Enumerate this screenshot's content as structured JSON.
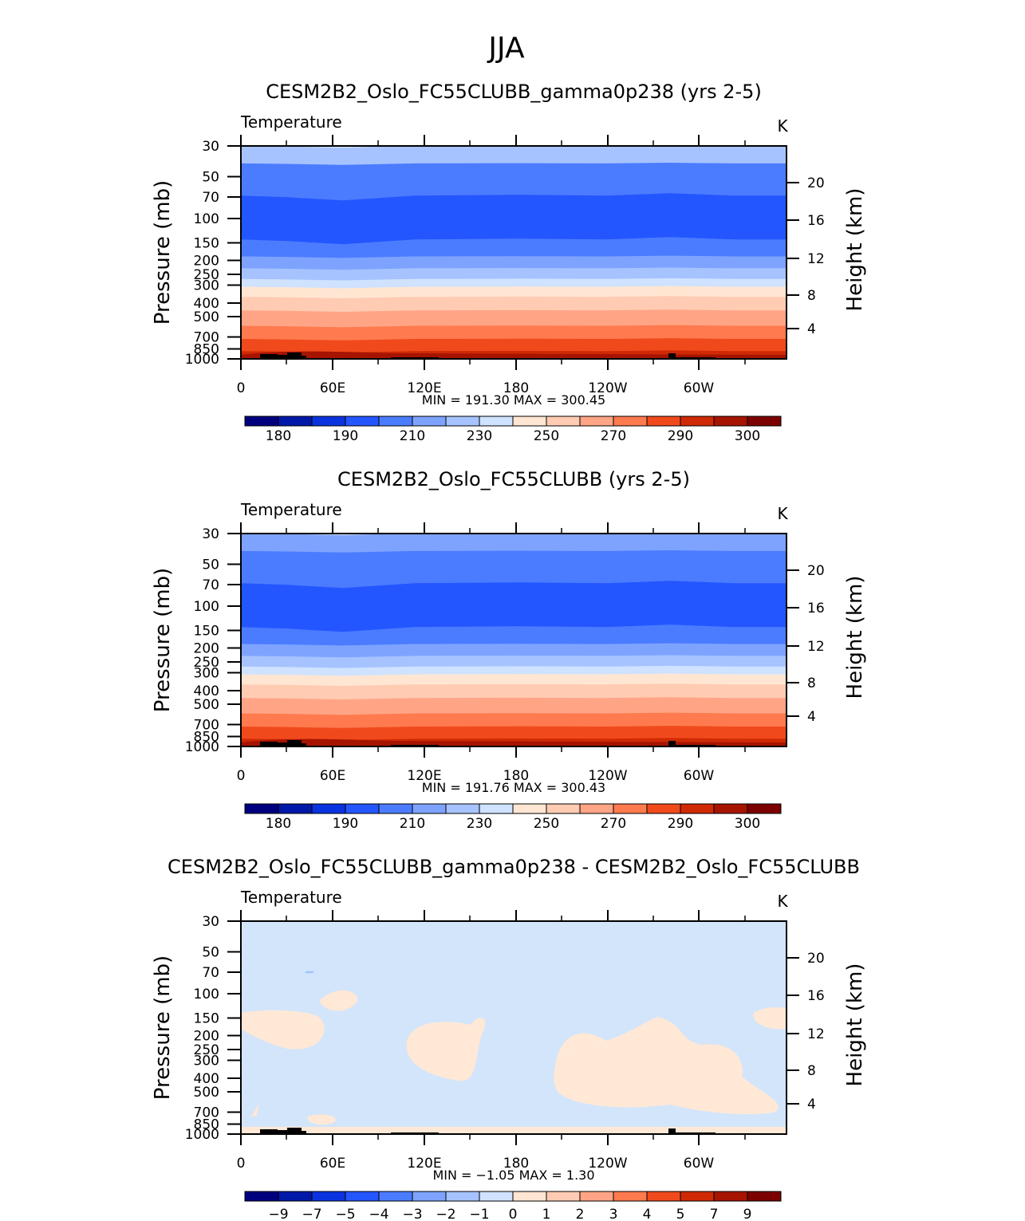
{
  "page_title": "JJA",
  "colors": {
    "abs_levels": [
      "#00007f",
      "#0019a8",
      "#0a33e0",
      "#2456ff",
      "#4b7cff",
      "#7ea3ff",
      "#a6c3ff",
      "#cfe2ff",
      "#ffe6d2",
      "#ffcbb3",
      "#ffa585",
      "#ff7a4f",
      "#f04a1c",
      "#cf2a05",
      "#a61400",
      "#7d0000"
    ],
    "diff_fill_neg": "#d3e5fa",
    "diff_fill_pos": "#ffe8d6",
    "diff_blob": "#a6c3ff",
    "terrain": "#000000"
  },
  "chart_data": [
    {
      "type": "contour-cross-section",
      "title": "CESM2B2_Oslo_FC55CLUBB_gamma0p238 (yrs 2-5)",
      "variable_label": "Temperature",
      "units": "K",
      "ylabel": "Pressure (mb)",
      "y2label": "Height (km)",
      "ylim": [
        1000,
        30
      ],
      "yticks": [
        "30",
        "50",
        "70",
        "100",
        "150",
        "200",
        "250",
        "300",
        "400",
        "500",
        "700",
        "850",
        "1000"
      ],
      "y2ticks": [
        "20",
        "16",
        "12",
        "8",
        "4"
      ],
      "xticks": [
        "0",
        "60E",
        "120E",
        "180",
        "120W",
        "60W"
      ],
      "stats_label": "MIN = 191.30 MAX = 300.45",
      "colorbar_labels": [
        "180",
        "190",
        "210",
        "230",
        "250",
        "270",
        "290",
        "300"
      ],
      "bands": [
        {
          "p_top": 30,
          "p_bot": 40,
          "color_index": 6
        },
        {
          "p_top": 40,
          "p_bot": 68,
          "color_index": 4
        },
        {
          "p_top": 68,
          "p_bot": 140,
          "color_index": 3
        },
        {
          "p_top": 140,
          "p_bot": 185,
          "color_index": 4
        },
        {
          "p_top": 185,
          "p_bot": 225,
          "color_index": 5
        },
        {
          "p_top": 225,
          "p_bot": 268,
          "color_index": 6
        },
        {
          "p_top": 268,
          "p_bot": 305,
          "color_index": 7
        },
        {
          "p_top": 305,
          "p_bot": 360,
          "color_index": 8
        },
        {
          "p_top": 360,
          "p_bot": 450,
          "color_index": 9
        },
        {
          "p_top": 450,
          "p_bot": 580,
          "color_index": 10
        },
        {
          "p_top": 580,
          "p_bot": 720,
          "color_index": 11
        },
        {
          "p_top": 720,
          "p_bot": 880,
          "color_index": 12
        },
        {
          "p_top": 880,
          "p_bot": 1000,
          "color_index": 13
        }
      ]
    },
    {
      "type": "contour-cross-section",
      "title": "CESM2B2_Oslo_FC55CLUBB (yrs 2-5)",
      "variable_label": "Temperature",
      "units": "K",
      "ylabel": "Pressure (mb)",
      "y2label": "Height (km)",
      "ylim": [
        1000,
        30
      ],
      "yticks": [
        "30",
        "50",
        "70",
        "100",
        "150",
        "200",
        "250",
        "300",
        "400",
        "500",
        "700",
        "850",
        "1000"
      ],
      "y2ticks": [
        "20",
        "16",
        "12",
        "8",
        "4"
      ],
      "xticks": [
        "0",
        "60E",
        "120E",
        "180",
        "120W",
        "60W"
      ],
      "stats_label": "MIN = 191.76 MAX = 300.43",
      "colorbar_labels": [
        "180",
        "190",
        "210",
        "230",
        "250",
        "270",
        "290",
        "300"
      ],
      "bands": [
        {
          "p_top": 30,
          "p_bot": 40,
          "color_index": 5
        },
        {
          "p_top": 40,
          "p_bot": 68,
          "color_index": 4
        },
        {
          "p_top": 68,
          "p_bot": 140,
          "color_index": 3
        },
        {
          "p_top": 140,
          "p_bot": 185,
          "color_index": 4
        },
        {
          "p_top": 185,
          "p_bot": 225,
          "color_index": 5
        },
        {
          "p_top": 225,
          "p_bot": 268,
          "color_index": 6
        },
        {
          "p_top": 268,
          "p_bot": 305,
          "color_index": 7
        },
        {
          "p_top": 305,
          "p_bot": 360,
          "color_index": 8
        },
        {
          "p_top": 360,
          "p_bot": 450,
          "color_index": 9
        },
        {
          "p_top": 450,
          "p_bot": 580,
          "color_index": 10
        },
        {
          "p_top": 580,
          "p_bot": 720,
          "color_index": 11
        },
        {
          "p_top": 720,
          "p_bot": 880,
          "color_index": 12
        },
        {
          "p_top": 880,
          "p_bot": 1000,
          "color_index": 13
        }
      ]
    },
    {
      "type": "contour-cross-section-difference",
      "title": "CESM2B2_Oslo_FC55CLUBB_gamma0p238 - CESM2B2_Oslo_FC55CLUBB",
      "variable_label": "Temperature",
      "units": "K",
      "ylabel": "Pressure (mb)",
      "y2label": "Height (km)",
      "ylim": [
        1000,
        30
      ],
      "yticks": [
        "30",
        "50",
        "70",
        "100",
        "150",
        "200",
        "250",
        "300",
        "400",
        "500",
        "700",
        "850",
        "1000"
      ],
      "y2ticks": [
        "20",
        "16",
        "12",
        "8",
        "4"
      ],
      "xticks": [
        "0",
        "60E",
        "120E",
        "180",
        "120W",
        "60W"
      ],
      "stats_label": "MIN = −1.05 MAX = 1.30",
      "colorbar_labels": [
        "−9",
        "−7",
        "−5",
        "−4",
        "−3",
        "−2",
        "−1",
        "0",
        "1",
        "2",
        "3",
        "4",
        "5",
        "7",
        "9"
      ]
    }
  ]
}
